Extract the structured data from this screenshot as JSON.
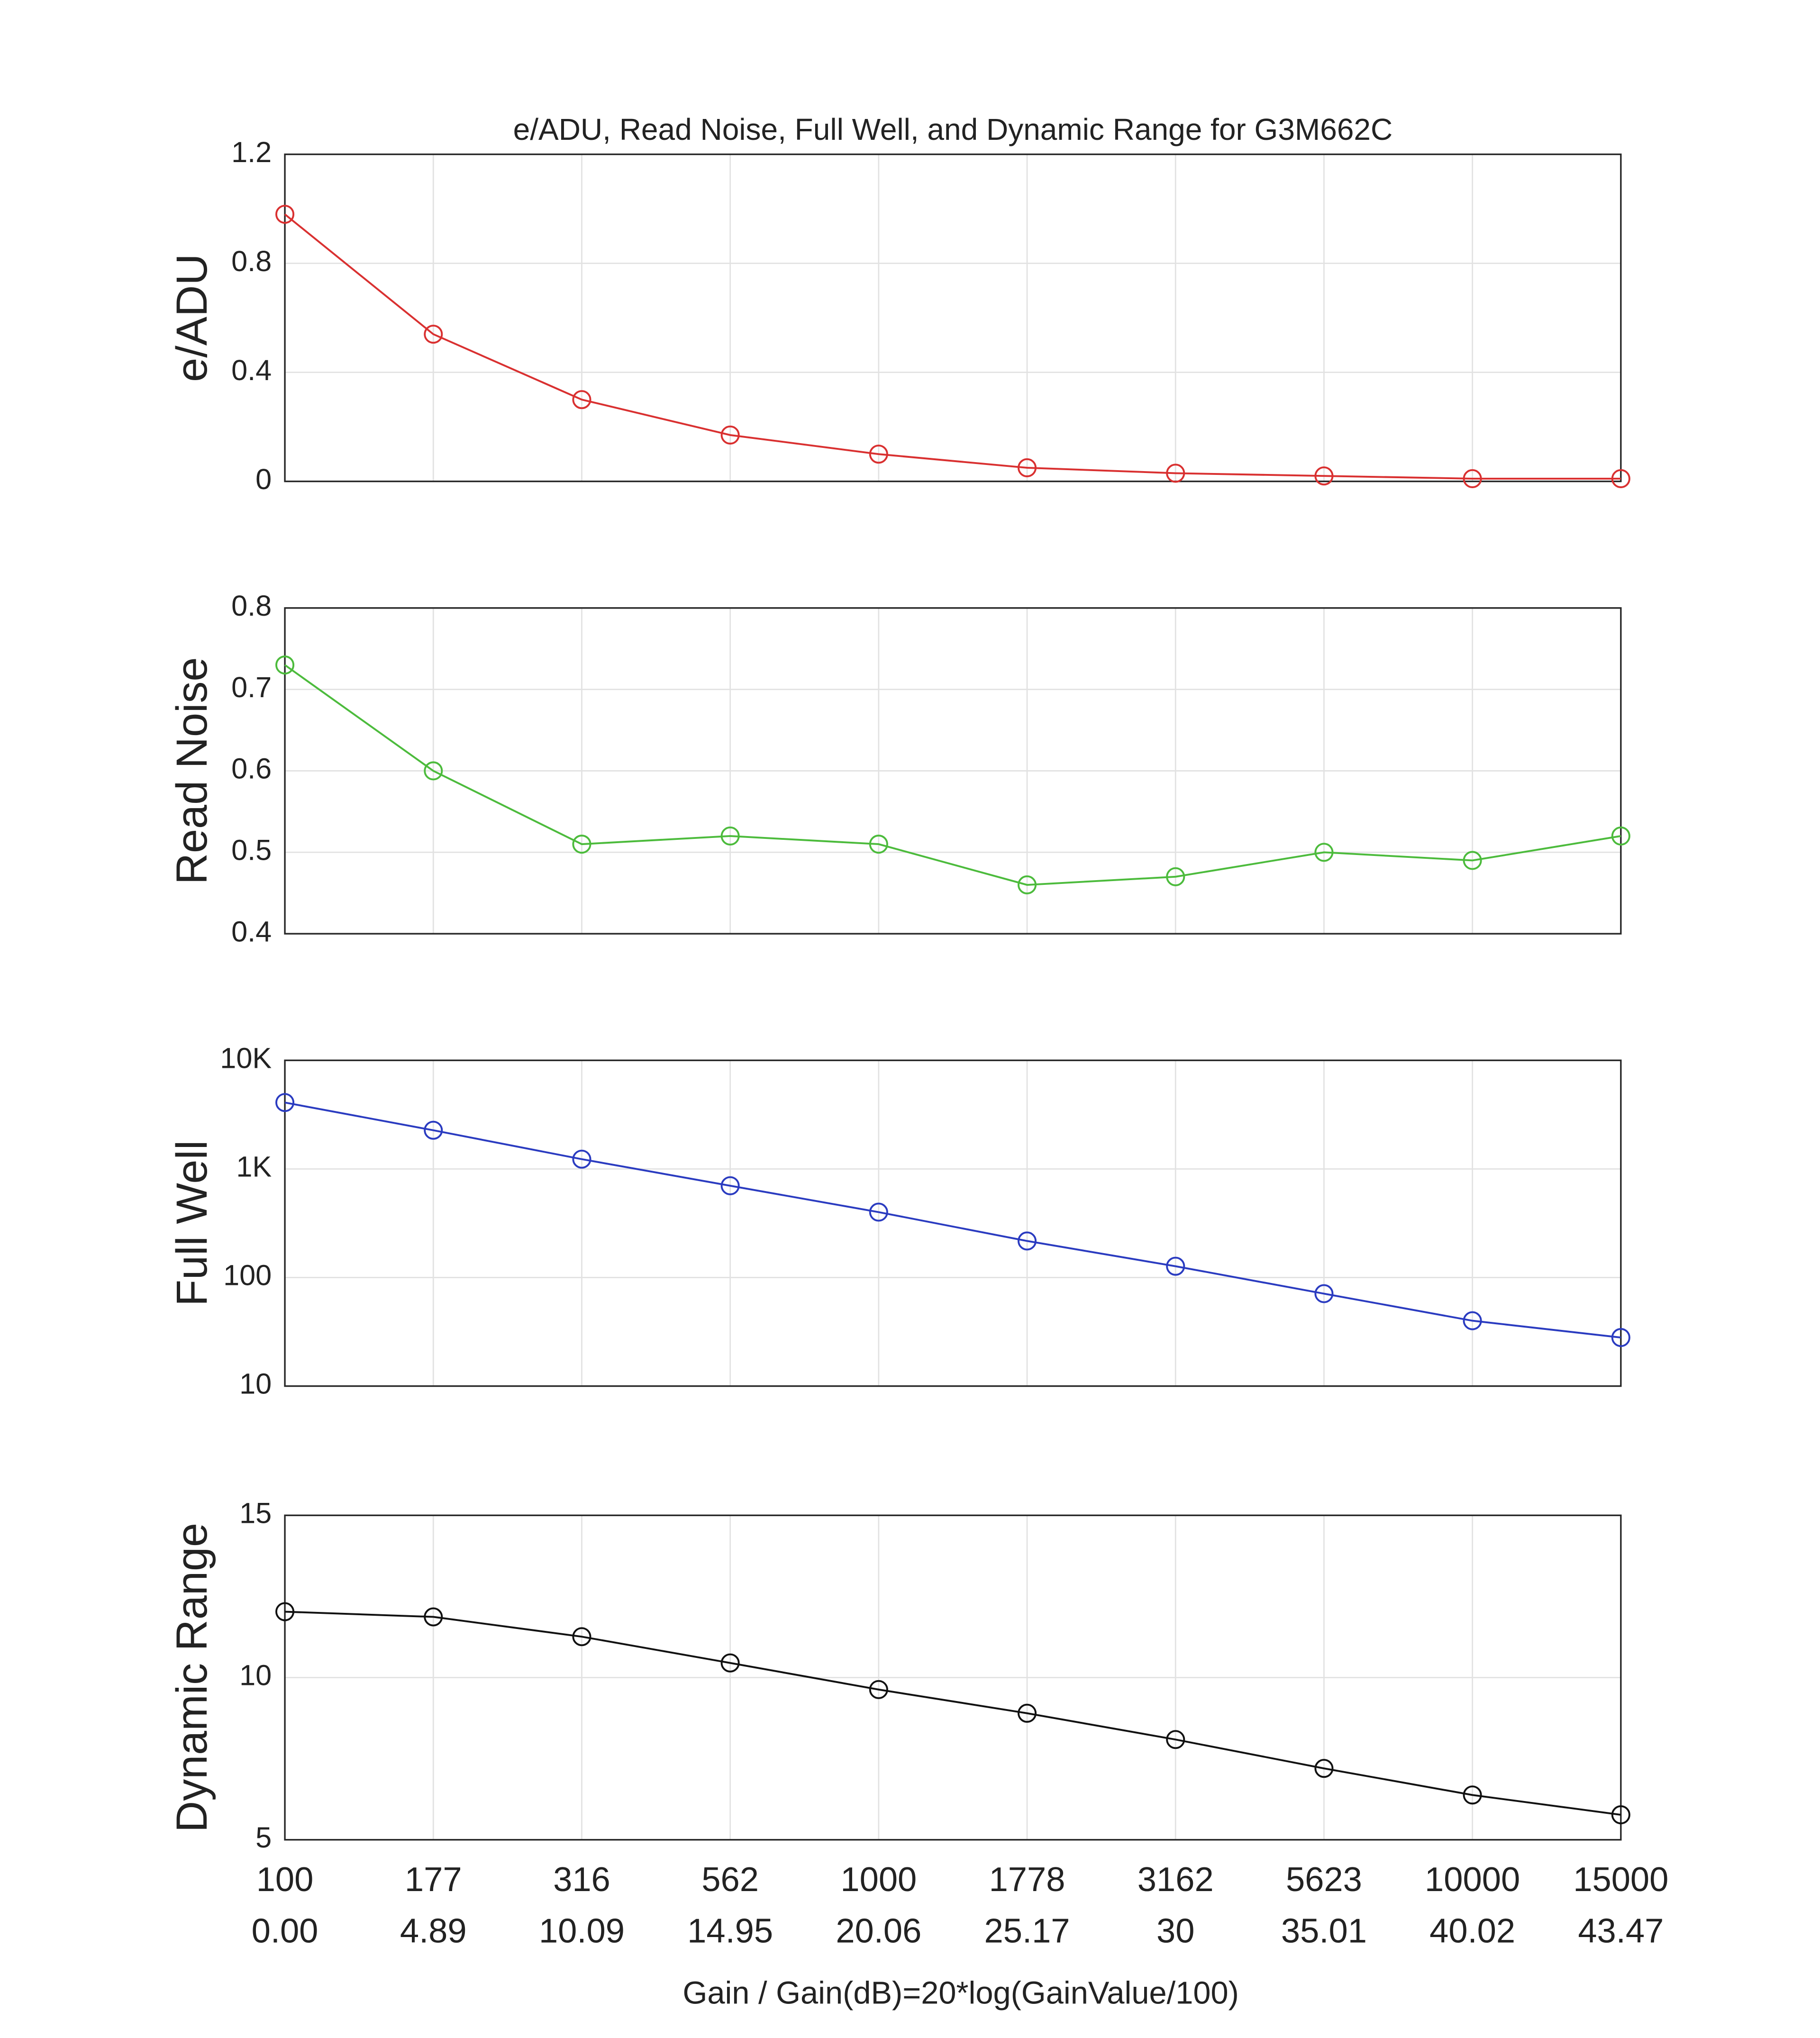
{
  "chart_data": [
    {
      "type": "line",
      "title": "e/ADU, Read Noise, Full Well, and Dynamic Range for G3M662C",
      "ylabel": "e/ADU",
      "series": [
        {
          "color": "#d93030",
          "values": [
            0.98,
            0.54,
            0.3,
            0.17,
            0.1,
            0.05,
            0.03,
            0.02,
            0.01,
            0.01
          ]
        }
      ],
      "ylim": [
        0,
        1.2
      ],
      "yticks": [
        0,
        0.4,
        0.8,
        1.2
      ],
      "grid": true
    },
    {
      "type": "line",
      "ylabel": "Read Noise",
      "series": [
        {
          "color": "#4cbb3c",
          "values": [
            0.73,
            0.6,
            0.51,
            0.52,
            0.51,
            0.46,
            0.47,
            0.5,
            0.49,
            0.52
          ]
        }
      ],
      "ylim": [
        0.4,
        0.8
      ],
      "yticks": [
        0.4,
        0.5,
        0.6,
        0.7,
        0.8
      ],
      "grid": true
    },
    {
      "type": "line",
      "ylabel": "Full Well",
      "yscale": "log",
      "series": [
        {
          "color": "#2a3bc0",
          "values": [
            4087,
            2270,
            1230,
            700,
            400,
            217,
            127,
            71,
            40,
            28
          ]
        }
      ],
      "ylim": [
        10,
        10000
      ],
      "yticks": [
        10,
        100,
        {
          "value": 1000,
          "label": "1K"
        },
        {
          "value": 10000,
          "label": "10K"
        }
      ],
      "grid": true
    },
    {
      "type": "line",
      "ylabel": "Dynamic Range",
      "xlabel": "Gain / Gain(dB)=20*log(GainValue/100)",
      "categories": [
        "100",
        "177",
        "316",
        "562",
        "1000",
        "1778",
        "3162",
        "5623",
        "10000",
        "15000"
      ],
      "secondary_categories": [
        "0.00",
        "4.89",
        "10.09",
        "14.95",
        "20.06",
        "25.17",
        "30",
        "35.01",
        "40.02",
        "43.47"
      ],
      "series": [
        {
          "color": "#111111",
          "values": [
            12.03,
            11.87,
            11.26,
            10.45,
            9.63,
            8.9,
            8.09,
            7.2,
            6.38,
            5.77
          ]
        }
      ],
      "ylim": [
        5,
        15
      ],
      "yticks": [
        5,
        10,
        15
      ],
      "grid": true
    }
  ]
}
